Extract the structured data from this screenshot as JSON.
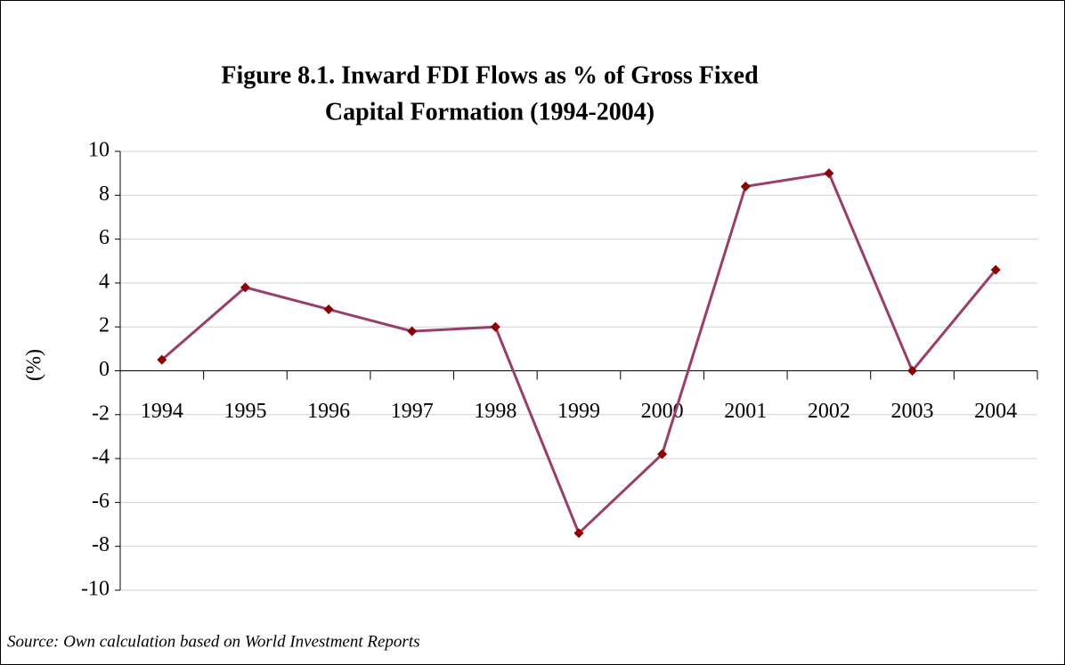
{
  "chart_data": {
    "type": "line",
    "title": [
      "Figure 8.1. Inward FDI Flows as % of Gross Fixed",
      "Capital Formation (1994-2004)"
    ],
    "y_label": "(%)",
    "source": "Source: Own calculation based on World Investment Reports",
    "categories": [
      "1994",
      "1995",
      "1996",
      "1997",
      "1998",
      "1999",
      "2000",
      "2001",
      "2002",
      "2003",
      "2004"
    ],
    "series": [
      {
        "name": "Inward FDI Flows",
        "color": "#993d6b",
        "marker_color": "#8b0000",
        "values": [
          0.5,
          3.8,
          2.8,
          1.8,
          2.0,
          -7.4,
          -3.8,
          8.4,
          9.0,
          0.0,
          4.6
        ]
      }
    ],
    "ylim": [
      -10,
      10
    ],
    "yticks": [
      -10,
      -8,
      -6,
      -4,
      -2,
      0,
      2,
      4,
      6,
      8,
      10
    ],
    "grid": true
  }
}
